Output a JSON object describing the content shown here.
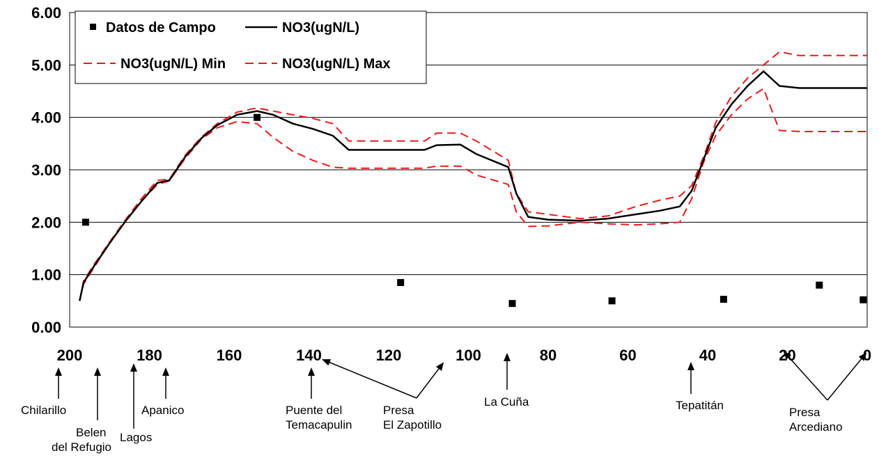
{
  "chart_data": {
    "type": "line",
    "title": "",
    "xlabel": "",
    "ylabel": "",
    "xlim": [
      200,
      0
    ],
    "ylim": [
      0,
      6
    ],
    "x_reversed": true,
    "grid": "horizontal",
    "x_ticks": [
      "200",
      "180",
      "160",
      "140",
      "120",
      "100",
      "80",
      "60",
      "40",
      "20",
      "0"
    ],
    "y_ticks": [
      "0.00",
      "1.00",
      "2.00",
      "3.00",
      "4.00",
      "5.00",
      "6.00"
    ],
    "legend": {
      "placement": "top-left",
      "entries": [
        "Datos de Campo",
        "NO3(ugN/L)",
        "NO3(ugN/L) Min",
        "NO3(ugN/L) Max"
      ]
    },
    "series": [
      {
        "name": "Datos de Campo",
        "kind": "scatter",
        "color": "#000000",
        "x": [
          196,
          153,
          117,
          89,
          64,
          36,
          12,
          1
        ],
        "y": [
          2.0,
          4.0,
          0.85,
          0.45,
          0.5,
          0.53,
          0.8,
          0.52
        ]
      },
      {
        "name": "NO3(ugN/L)",
        "kind": "line",
        "color": "#000000",
        "x": [
          197.5,
          196.5,
          194,
          190,
          186,
          182,
          178,
          175,
          171,
          167,
          163,
          158,
          153,
          149,
          144,
          139,
          134,
          130,
          122,
          111,
          108,
          102,
          98,
          90,
          88,
          85,
          80,
          72,
          65,
          58,
          52,
          47,
          44,
          41,
          38,
          34,
          30,
          26,
          22,
          17,
          10,
          0
        ],
        "y": [
          0.5,
          0.85,
          1.15,
          1.6,
          2.02,
          2.4,
          2.75,
          2.8,
          3.25,
          3.6,
          3.85,
          4.05,
          4.12,
          4.05,
          3.88,
          3.78,
          3.65,
          3.38,
          3.38,
          3.38,
          3.47,
          3.48,
          3.3,
          3.05,
          2.55,
          2.1,
          2.05,
          2.03,
          2.07,
          2.15,
          2.22,
          2.3,
          2.6,
          3.2,
          3.8,
          4.25,
          4.6,
          4.88,
          4.6,
          4.56,
          4.56,
          4.56
        ]
      },
      {
        "name": "NO3(ugN/L) Min",
        "kind": "line",
        "dashed": true,
        "color": "#e8191a",
        "x": [
          197.5,
          196.5,
          194,
          190,
          186,
          182,
          178,
          175,
          171,
          167,
          163,
          158,
          153,
          149,
          144,
          139,
          134,
          130,
          122,
          111,
          108,
          102,
          98,
          90,
          88,
          85,
          80,
          72,
          65,
          58,
          52,
          47,
          44,
          41,
          38,
          34,
          30,
          26,
          22,
          17,
          10,
          0
        ],
        "y": [
          0.5,
          0.82,
          1.12,
          1.6,
          2.02,
          2.4,
          2.72,
          2.79,
          3.22,
          3.58,
          3.8,
          3.92,
          3.88,
          3.62,
          3.35,
          3.18,
          3.05,
          3.03,
          3.03,
          3.03,
          3.07,
          3.07,
          2.9,
          2.72,
          2.2,
          1.92,
          1.93,
          2.0,
          1.97,
          1.95,
          1.97,
          2.0,
          2.45,
          3.15,
          3.65,
          4.05,
          4.35,
          4.55,
          3.75,
          3.73,
          3.73,
          3.73
        ]
      },
      {
        "name": "NO3(ugN/L) Max",
        "kind": "line",
        "dashed": true,
        "color": "#e8191a",
        "x": [
          197.5,
          196.5,
          194,
          190,
          186,
          182,
          178,
          175,
          171,
          167,
          163,
          158,
          153,
          149,
          144,
          139,
          134,
          130,
          122,
          111,
          108,
          102,
          98,
          90,
          88,
          85,
          80,
          72,
          65,
          58,
          52,
          47,
          44,
          41,
          38,
          34,
          30,
          26,
          22,
          17,
          10,
          0
        ],
        "y": [
          0.5,
          0.88,
          1.18,
          1.62,
          2.05,
          2.45,
          2.8,
          2.82,
          3.28,
          3.62,
          3.88,
          4.1,
          4.18,
          4.12,
          4.05,
          3.98,
          3.88,
          3.55,
          3.55,
          3.55,
          3.7,
          3.7,
          3.55,
          3.18,
          2.55,
          2.2,
          2.15,
          2.07,
          2.12,
          2.3,
          2.42,
          2.5,
          2.7,
          3.25,
          3.9,
          4.4,
          4.75,
          5.0,
          5.25,
          5.18,
          5.18,
          5.18
        ]
      }
    ],
    "annotations": [
      {
        "lines": [
          "Chilarillo"
        ],
        "target_x": 200
      },
      {
        "lines": [
          "Belen",
          "del Refugio"
        ],
        "target_x": 192
      },
      {
        "lines": [
          "Lagos"
        ],
        "target_x": 181
      },
      {
        "lines": [
          "Apanico"
        ],
        "target_x": 174
      },
      {
        "lines": [
          "Puente del",
          "Temacapulin"
        ],
        "target_x": 139
      },
      {
        "lines": [
          "Presa",
          "El Zapotillo"
        ],
        "target_x": [
          136,
          99
        ]
      },
      {
        "lines": [
          "La  Cuña"
        ],
        "target_x": 88
      },
      {
        "lines": [
          "Tepatitán"
        ],
        "target_x": 42
      },
      {
        "lines": [
          "Presa",
          "Arcediano"
        ],
        "target_x": [
          22,
          1
        ]
      }
    ]
  }
}
